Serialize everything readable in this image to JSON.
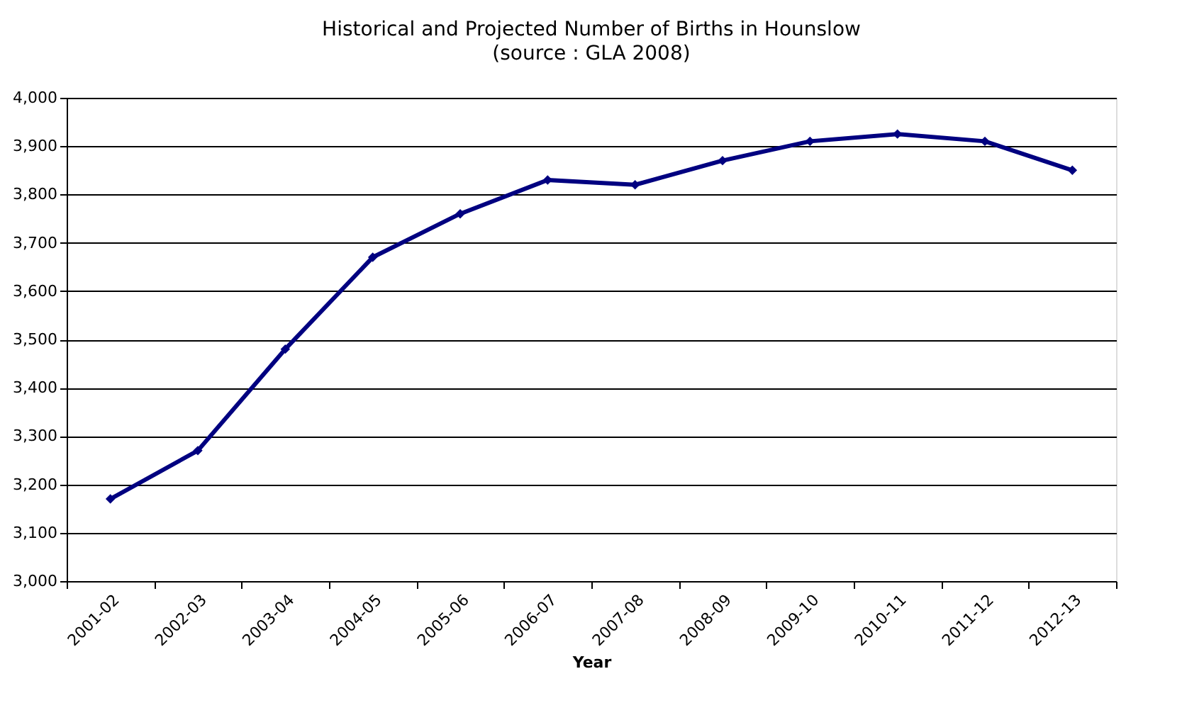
{
  "chart_data": {
    "type": "line",
    "title": "Historical and Projected Number of Births in Hounslow",
    "subtitle": "(source : GLA 2008)",
    "xlabel": "Year",
    "categories": [
      "2001-02",
      "2002-03",
      "2003-04",
      "2004-05",
      "2005-06",
      "2006-07",
      "2007-08",
      "2008-09",
      "2009-10",
      "2010-11",
      "2011-12",
      "2012-13"
    ],
    "series": [
      {
        "color": "#000080",
        "values": [
          3170,
          3270,
          3480,
          3670,
          3760,
          3830,
          3820,
          3870,
          3910,
          3925,
          3910,
          3850
        ]
      }
    ],
    "ylim": [
      3000,
      4000
    ],
    "yticks": [
      {
        "value": 3000,
        "label": "3,000"
      },
      {
        "value": 3100,
        "label": "3,100"
      },
      {
        "value": 3200,
        "label": "3,200"
      },
      {
        "value": 3300,
        "label": "3,300"
      },
      {
        "value": 3400,
        "label": "3,400"
      },
      {
        "value": 3500,
        "label": "3,500"
      },
      {
        "value": 3600,
        "label": "3,600"
      },
      {
        "value": 3700,
        "label": "3,700"
      },
      {
        "value": 3800,
        "label": "3,800"
      },
      {
        "value": 3900,
        "label": "3,900"
      },
      {
        "value": 4000,
        "label": "4,000"
      }
    ],
    "grid": "y",
    "marker": "diamond",
    "line_style": "solid"
  }
}
